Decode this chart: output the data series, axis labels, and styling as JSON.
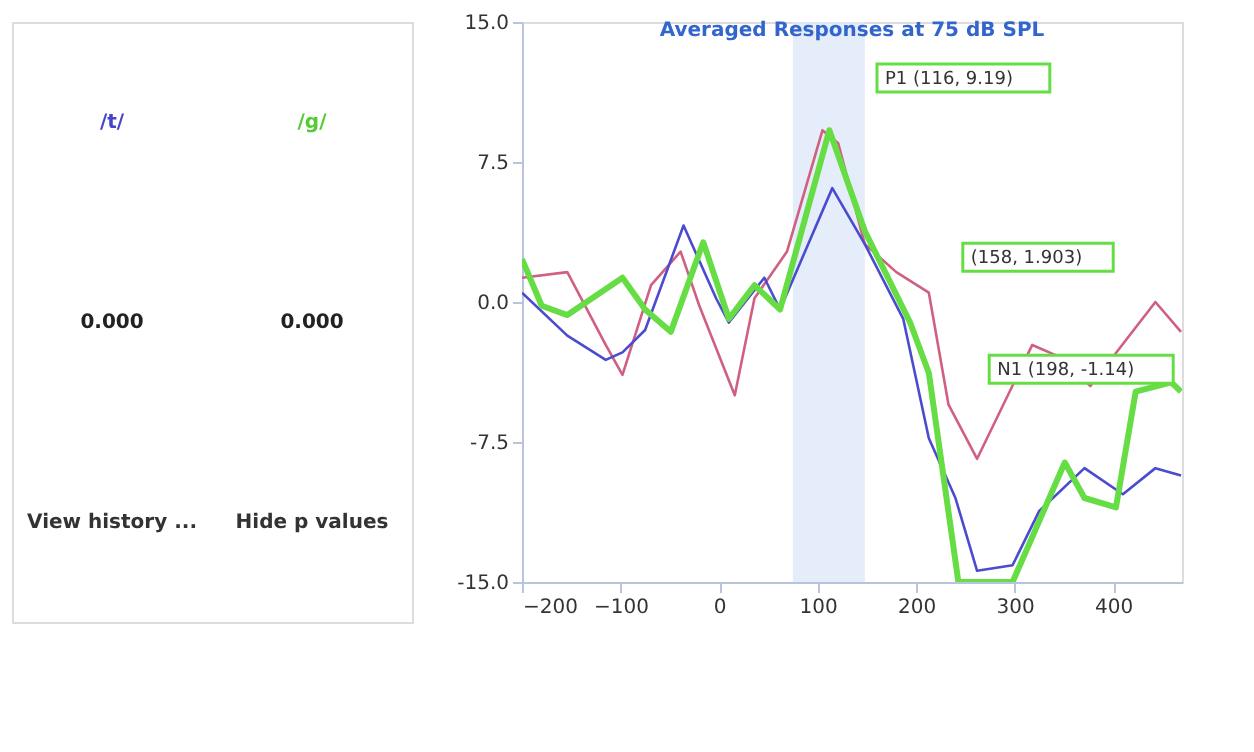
{
  "chart_data": [
    {
      "type": "other",
      "annotations": [
        "/t/",
        "/g/",
        "0.000",
        "0.000",
        "View history ...",
        "Hide p values"
      ],
      "colors": [
        "#4444cc",
        "#55cc33",
        "#222222",
        "#222222",
        "#333333",
        "#333333"
      ]
    },
    {
      "type": "line",
      "title": "Averaged Responses at 75 dB SPL",
      "xlim": [
        -200,
        470
      ],
      "xticks": [
        -200,
        -100,
        0,
        100,
        200,
        300,
        400
      ],
      "ylim": [
        -15,
        15
      ],
      "yticks": [
        {
          "value": -15,
          "label": "-15.0"
        },
        {
          "value": -7.5,
          "label": "-7.5"
        },
        {
          "value": 0,
          "label": "0.0"
        },
        {
          "value": 7.5,
          "label": "7.5"
        },
        {
          "value": 15,
          "label": "15.0"
        }
      ],
      "grid": false,
      "line_style": "solid",
      "marker": "none",
      "series": [
        {
          "color": "#d06080",
          "x": [
            -200,
            -154,
            -115,
            -98,
            -69,
            -39,
            -20,
            16,
            36,
            69,
            105,
            121,
            148,
            180,
            213,
            233,
            262,
            318,
            344,
            377,
            443,
            469
          ],
          "values": [
            1.3,
            1.6,
            -2.3,
            -3.9,
            0.9,
            2.7,
            -0.2,
            -5.0,
            0.2,
            2.7,
            9.2,
            8.5,
            3.1,
            1.6,
            0.5,
            -5.5,
            -8.4,
            -2.3,
            -2.9,
            -4.5,
            0,
            -1.6
          ]
        },
        {
          "color": "#4b4bd0",
          "x": [
            -200,
            -154,
            -115,
            -98,
            -75,
            -36,
            -3,
            10,
            46,
            62,
            115,
            148,
            187,
            213,
            240,
            262,
            298,
            325,
            371,
            410,
            443,
            469
          ],
          "values": [
            0.5,
            -1.8,
            -3.1,
            -2.7,
            -1.5,
            4.1,
            0.2,
            -1.1,
            1.3,
            -0.4,
            6.1,
            3.1,
            -0.9,
            -7.3,
            -10.5,
            -14.4,
            -14.1,
            -11.2,
            -8.9,
            -10.3,
            -8.9,
            -9.3
          ]
        },
        {
          "color": "#66dd44",
          "x": [
            -200,
            -180,
            -154,
            -98,
            -75,
            -49,
            -16,
            10,
            36,
            62,
            112,
            148,
            194,
            213,
            243,
            298,
            351,
            371,
            403,
            423,
            459,
            469
          ],
          "values": [
            2.3,
            -0.2,
            -0.7,
            1.3,
            -0.4,
            -1.6,
            3.2,
            -0.9,
            0.9,
            -0.4,
            9.2,
            3.8,
            -1.1,
            -3.8,
            -15.0,
            -15.0,
            -8.6,
            -10.5,
            -11.0,
            -4.8,
            -4.3,
            -4.8
          ]
        }
      ],
      "bands": [
        {
          "axis": "x",
          "from": 75,
          "to": 148,
          "color": "#dde8f8"
        }
      ],
      "annotations": [
        "P1 (116, 9.19)",
        "(158, 1.903)",
        "N1 (198, -1.14)"
      ]
    }
  ]
}
